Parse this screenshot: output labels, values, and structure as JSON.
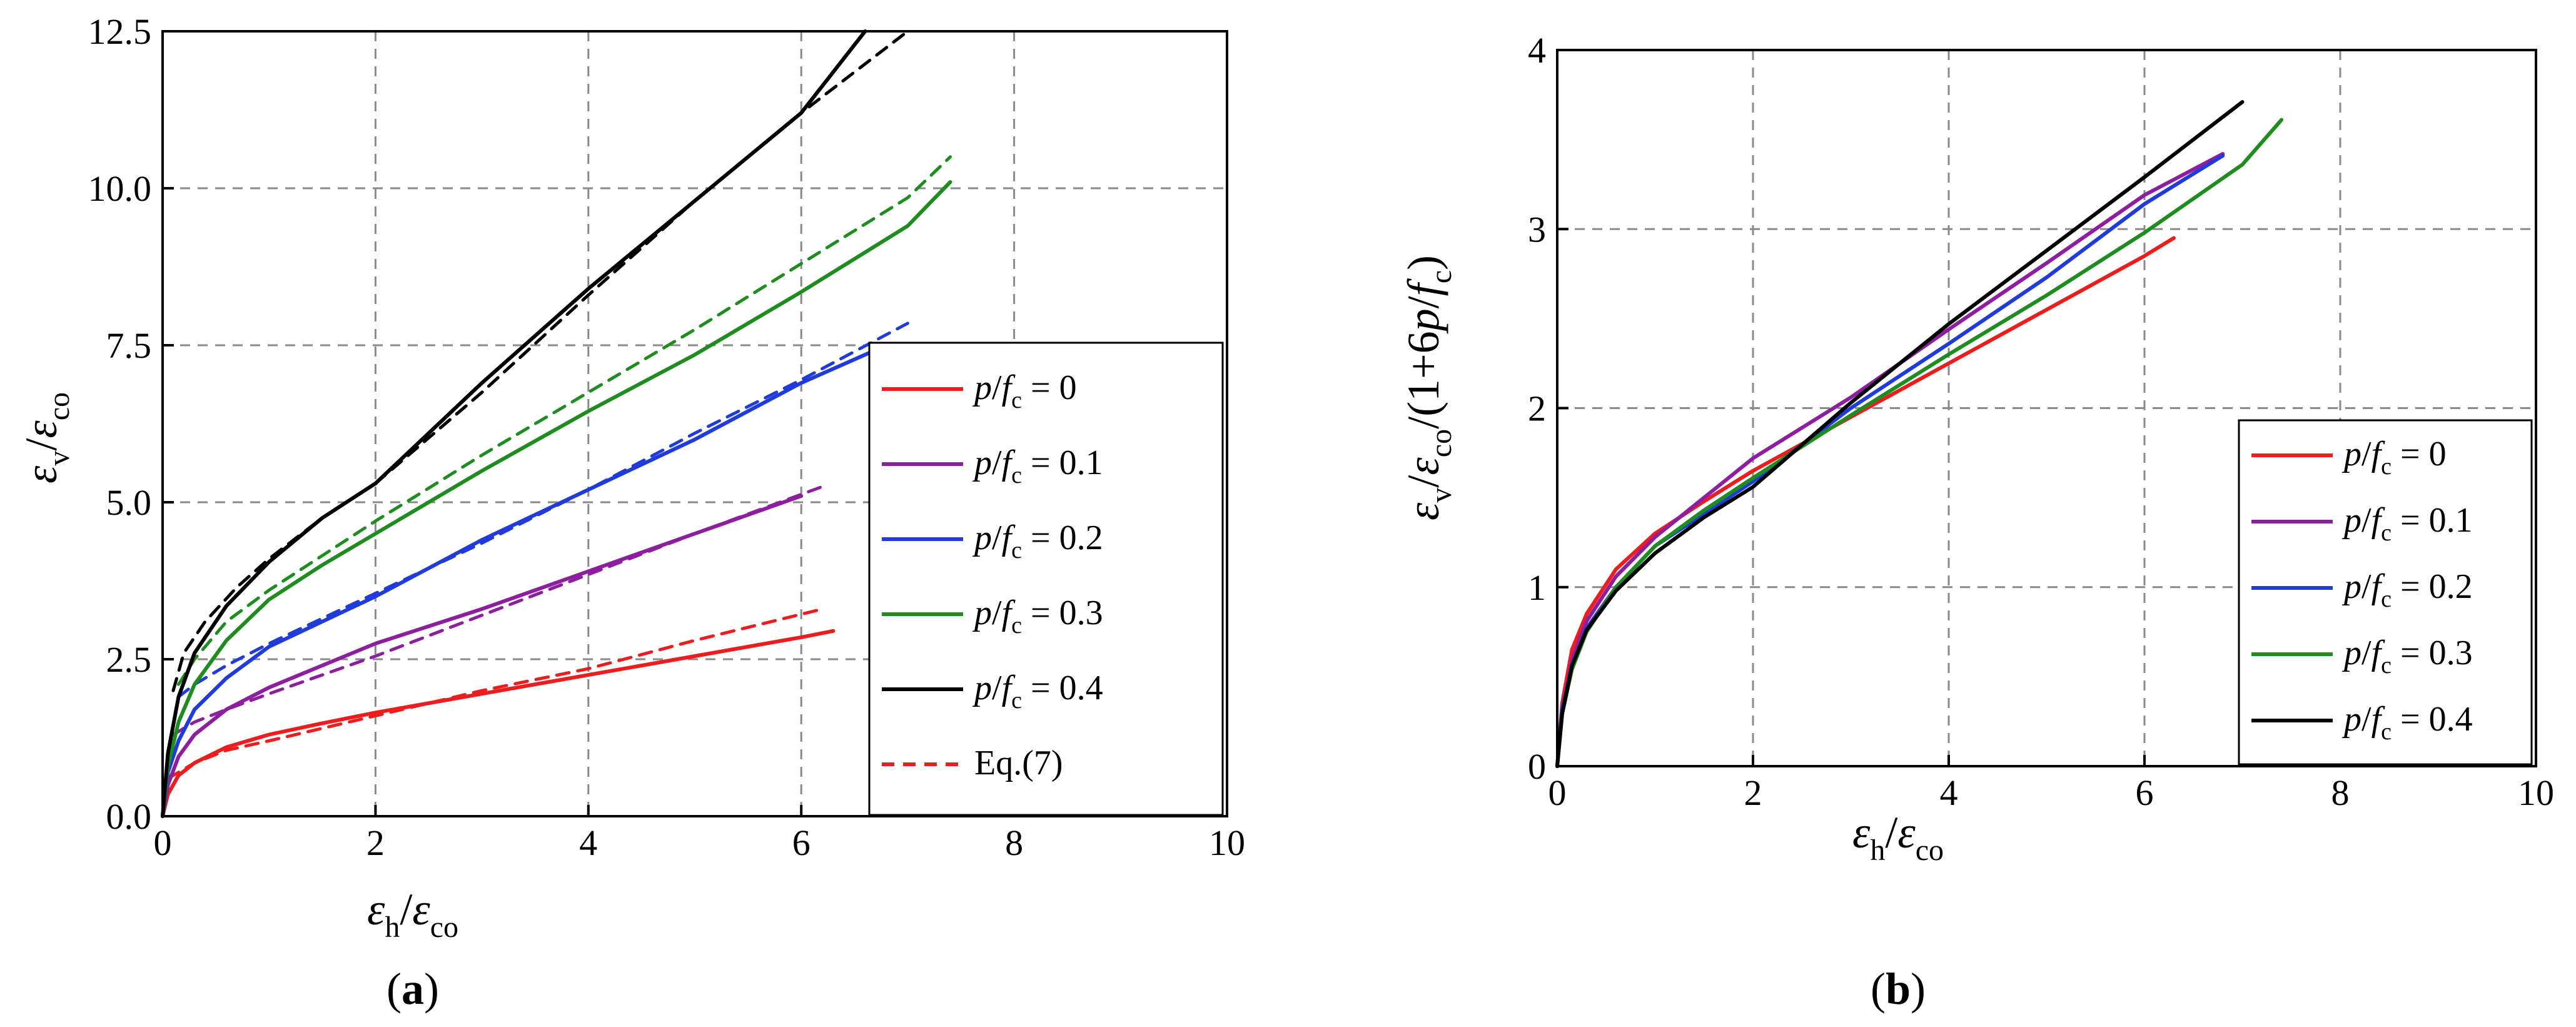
{
  "chart_data": [
    {
      "type": "line",
      "panel_label": "(a)",
      "panel_letter": "a",
      "xlim": [
        0,
        10
      ],
      "ylim": [
        0,
        12.5
      ],
      "xticks": [
        0,
        2,
        4,
        6,
        8,
        10
      ],
      "xtick_labels": [
        "0",
        "2",
        "4",
        "6",
        "8",
        "10"
      ],
      "yticks": [
        0,
        2.5,
        5,
        7.5,
        10,
        12.5
      ],
      "ytick_labels": [
        "0.0",
        "2.5",
        "5.0",
        "7.5",
        "10.0",
        "12.5"
      ],
      "grid": true,
      "legend_position": "lower-right",
      "xlabel": {
        "num": "ε",
        "num_sub": "h",
        "slash": "/",
        "den": "ε",
        "den_sub": "co"
      },
      "ylabel": {
        "num": "ε",
        "num_sub": "v",
        "slash": "/",
        "den": "ε",
        "den_sub": "co"
      },
      "series": [
        {
          "name": "p/fc = 0",
          "legend": {
            "p": "p",
            "slash": "/",
            "f": "f",
            "sub": "c",
            "rest": " = 0"
          },
          "color": "#ee1c1c",
          "dash": false,
          "x": [
            0,
            0.05,
            0.15,
            0.3,
            0.6,
            1.0,
            1.5,
            2.0,
            3.0,
            4.0,
            5.0,
            6.0,
            6.3
          ],
          "y": [
            0,
            0.35,
            0.65,
            0.85,
            1.1,
            1.3,
            1.48,
            1.65,
            1.95,
            2.25,
            2.55,
            2.85,
            2.95
          ]
        },
        {
          "name": "p/fc = 0.1",
          "legend": {
            "p": "p",
            "slash": "/",
            "f": "f",
            "sub": "c",
            "rest": " = 0.1"
          },
          "color": "#8e1ea0",
          "dash": false,
          "x": [
            0,
            0.05,
            0.15,
            0.3,
            0.6,
            1.0,
            1.5,
            2.0,
            3.0,
            4.0,
            5.0,
            6.0
          ],
          "y": [
            0,
            0.5,
            0.95,
            1.3,
            1.7,
            2.05,
            2.4,
            2.75,
            3.3,
            3.9,
            4.5,
            5.1
          ]
        },
        {
          "name": "p/fc = 0.2",
          "legend": {
            "p": "p",
            "slash": "/",
            "f": "f",
            "sub": "c",
            "rest": " = 0.2"
          },
          "color": "#1f3bdc",
          "dash": false,
          "x": [
            0,
            0.05,
            0.15,
            0.3,
            0.6,
            1.0,
            1.5,
            2.0,
            3.0,
            4.0,
            5.0,
            6.0,
            6.8
          ],
          "y": [
            0,
            0.7,
            1.2,
            1.7,
            2.2,
            2.7,
            3.1,
            3.5,
            4.4,
            5.2,
            6.0,
            6.9,
            7.5
          ]
        },
        {
          "name": "p/fc = 0.3",
          "legend": {
            "p": "p",
            "slash": "/",
            "f": "f",
            "sub": "c",
            "rest": " = 0.3"
          },
          "color": "#1e8c1e",
          "dash": false,
          "x": [
            0,
            0.05,
            0.15,
            0.3,
            0.6,
            1.0,
            1.5,
            2.0,
            3.0,
            4.0,
            5.0,
            6.0,
            7.0,
            7.4
          ],
          "y": [
            0,
            0.8,
            1.5,
            2.1,
            2.8,
            3.45,
            4.0,
            4.5,
            5.5,
            6.45,
            7.35,
            8.35,
            9.4,
            10.1
          ]
        },
        {
          "name": "p/fc = 0.4",
          "legend": {
            "p": "p",
            "slash": "/",
            "f": "f",
            "sub": "c",
            "rest": " = 0.4"
          },
          "color": "#000000",
          "dash": false,
          "x": [
            0,
            0.05,
            0.15,
            0.3,
            0.6,
            1.0,
            1.5,
            2.0,
            3.0,
            4.0,
            5.0,
            6.0,
            6.6
          ],
          "y": [
            0,
            1.0,
            1.9,
            2.6,
            3.35,
            4.05,
            4.75,
            5.3,
            6.9,
            8.4,
            9.8,
            11.2,
            12.5
          ]
        },
        {
          "name": "Eq.(7)",
          "legend": {
            "p": "",
            "slash": "",
            "f": "",
            "sub": "",
            "rest": "Eq.(7)"
          },
          "color": "#ee1c1c",
          "dash": true,
          "legend_only": true,
          "x": [],
          "y": []
        },
        {
          "name": "Eq.(7) p/fc = 0",
          "color": "#ee1c1c",
          "dash": true,
          "no_legend": true,
          "x": [
            0.05,
            0.3,
            0.6,
            1.0,
            2.0,
            3.0,
            4.0,
            5.0,
            6.2
          ],
          "y": [
            0.6,
            0.85,
            1.05,
            1.2,
            1.6,
            2.0,
            2.35,
            2.8,
            3.3
          ]
        },
        {
          "name": "Eq.(7) p/fc = 0.1",
          "color": "#8e1ea0",
          "dash": true,
          "no_legend": true,
          "x": [
            0.1,
            0.3,
            0.6,
            1.0,
            2.0,
            3.0,
            4.0,
            5.0,
            6.2
          ],
          "y": [
            1.3,
            1.5,
            1.7,
            1.95,
            2.55,
            3.2,
            3.85,
            4.5,
            5.25
          ]
        },
        {
          "name": "Eq.(7) p/fc = 0.2",
          "color": "#1f3bdc",
          "dash": true,
          "no_legend": true,
          "x": [
            0.15,
            0.3,
            0.6,
            1.0,
            2.0,
            3.0,
            4.0,
            5.0,
            6.0,
            7.0
          ],
          "y": [
            1.9,
            2.1,
            2.4,
            2.75,
            3.55,
            4.35,
            5.2,
            6.1,
            6.95,
            7.85
          ]
        },
        {
          "name": "Eq.(7) p/fc = 0.3",
          "color": "#1e8c1e",
          "dash": true,
          "no_legend": true,
          "x": [
            0.15,
            0.3,
            0.6,
            1.0,
            2.0,
            3.0,
            4.0,
            5.0,
            6.0,
            7.0,
            7.4
          ],
          "y": [
            2.1,
            2.5,
            3.1,
            3.6,
            4.7,
            5.75,
            6.75,
            7.75,
            8.8,
            9.85,
            10.5
          ]
        },
        {
          "name": "Eq.(7) p/fc = 0.4",
          "color": "#000000",
          "dash": true,
          "no_legend": true,
          "x": [
            0.1,
            0.2,
            0.4,
            0.7,
            1.0,
            1.5,
            2.0,
            3.0,
            4.0,
            5.0,
            6.0,
            7.0
          ],
          "y": [
            2.0,
            2.6,
            3.1,
            3.65,
            4.1,
            4.75,
            5.3,
            6.75,
            8.3,
            9.8,
            11.2,
            12.5
          ]
        }
      ]
    },
    {
      "type": "line",
      "panel_label": "(b)",
      "panel_letter": "b",
      "xlim": [
        0,
        10
      ],
      "ylim": [
        0,
        4
      ],
      "xticks": [
        0,
        2,
        4,
        6,
        8,
        10
      ],
      "xtick_labels": [
        "0",
        "2",
        "4",
        "6",
        "8",
        "10"
      ],
      "yticks": [
        0,
        1,
        2,
        3,
        4
      ],
      "ytick_labels": [
        "0",
        "1",
        "2",
        "3",
        "4"
      ],
      "grid": true,
      "legend_position": "lower-right",
      "xlabel": {
        "num": "ε",
        "num_sub": "h",
        "slash": "/",
        "den": "ε",
        "den_sub": "co"
      },
      "ylabel": {
        "num": "ε",
        "num_sub": "v",
        "slash": "/",
        "den": "ε",
        "den_sub": "co",
        "tail_open": "/(1+6",
        "tail_p": "p",
        "tail_slash": "/",
        "tail_f": "f",
        "tail_sub": "c",
        "tail_close": ")"
      },
      "series": [
        {
          "name": "p/fc = 0",
          "legend": {
            "p": "p",
            "slash": "/",
            "f": "f",
            "sub": "c",
            "rest": " = 0"
          },
          "color": "#ee1c1c",
          "dash": false,
          "x": [
            0,
            0.05,
            0.15,
            0.3,
            0.6,
            1.0,
            1.5,
            2.0,
            3.0,
            4.0,
            5.0,
            6.0,
            6.3
          ],
          "y": [
            0,
            0.35,
            0.65,
            0.85,
            1.1,
            1.3,
            1.48,
            1.65,
            1.95,
            2.25,
            2.55,
            2.85,
            2.95
          ]
        },
        {
          "name": "p/fc = 0.1",
          "legend": {
            "p": "p",
            "slash": "/",
            "f": "f",
            "sub": "c",
            "rest": " = 0.1"
          },
          "color": "#8e1ea0",
          "dash": false,
          "x": [
            0,
            0.05,
            0.15,
            0.3,
            0.6,
            1.0,
            1.5,
            2.0,
            3.0,
            4.0,
            5.0,
            6.0,
            6.8
          ],
          "y": [
            0,
            0.3,
            0.59,
            0.81,
            1.06,
            1.28,
            1.5,
            1.72,
            2.06,
            2.44,
            2.81,
            3.19,
            3.42
          ]
        },
        {
          "name": "p/fc = 0.2",
          "legend": {
            "p": "p",
            "slash": "/",
            "f": "f",
            "sub": "c",
            "rest": " = 0.2"
          },
          "color": "#1f3bdc",
          "dash": false,
          "x": [
            0,
            0.05,
            0.15,
            0.3,
            0.6,
            1.0,
            1.5,
            2.0,
            3.0,
            4.0,
            5.0,
            6.0,
            6.8
          ],
          "y": [
            0,
            0.32,
            0.55,
            0.77,
            1.0,
            1.23,
            1.41,
            1.59,
            2.0,
            2.36,
            2.73,
            3.14,
            3.41
          ]
        },
        {
          "name": "p/fc = 0.3",
          "legend": {
            "p": "p",
            "slash": "/",
            "f": "f",
            "sub": "c",
            "rest": " = 0.3"
          },
          "color": "#1e8c1e",
          "dash": false,
          "x": [
            0,
            0.05,
            0.15,
            0.3,
            0.6,
            1.0,
            1.5,
            2.0,
            3.0,
            4.0,
            5.0,
            6.0,
            7.0,
            7.4
          ],
          "y": [
            0,
            0.29,
            0.54,
            0.75,
            1.0,
            1.23,
            1.43,
            1.61,
            1.96,
            2.3,
            2.63,
            2.98,
            3.36,
            3.61
          ]
        },
        {
          "name": "p/fc = 0.4",
          "legend": {
            "p": "p",
            "slash": "/",
            "f": "f",
            "sub": "c",
            "rest": " = 0.4"
          },
          "color": "#000000",
          "dash": false,
          "x": [
            0,
            0.05,
            0.15,
            0.3,
            0.6,
            1.0,
            1.5,
            2.0,
            3.0,
            4.0,
            5.0,
            6.0,
            7.0
          ],
          "y": [
            0,
            0.29,
            0.56,
            0.76,
            0.98,
            1.19,
            1.39,
            1.56,
            2.03,
            2.47,
            2.88,
            3.29,
            3.71
          ]
        }
      ]
    }
  ]
}
